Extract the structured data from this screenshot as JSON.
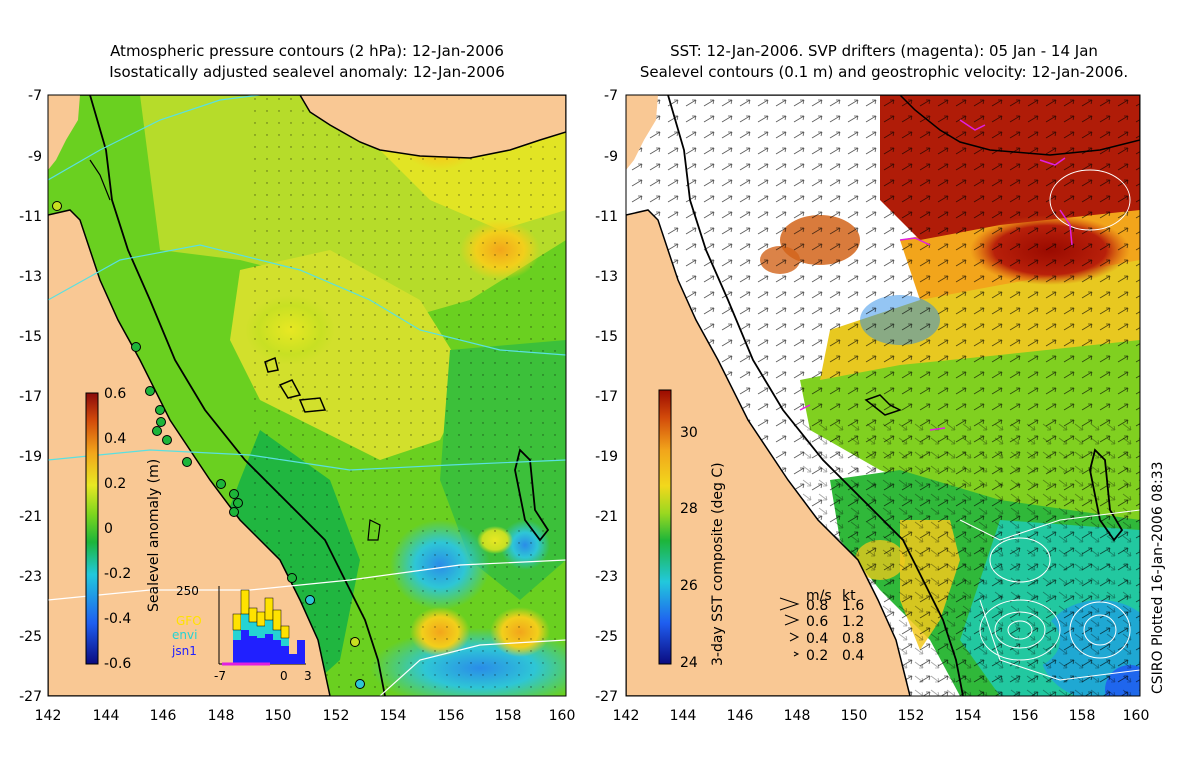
{
  "left_panel": {
    "title_line1": "Atmospheric pressure contours (2 hPa): 12-Jan-2006",
    "title_line2": "Isostatically adjusted sealevel anomaly: 12-Jan-2006",
    "colorbar_label": "Sealevel anomaly (m)",
    "colorbar_ticks": [
      "0.6",
      "0.4",
      "0.2",
      "0",
      "-0.2",
      "-0.4",
      "-0.6"
    ],
    "inset_top": "250",
    "inset_legend": [
      "GFO",
      "envi",
      "jsn1"
    ],
    "inset_legend_colors": [
      "#ffe200",
      "#25d3d3",
      "#2020ff"
    ],
    "inset_xticks": [
      "-7",
      "0",
      "3"
    ]
  },
  "right_panel": {
    "title_line1": "SST: 12-Jan-2006. SVP drifters (magenta): 05 Jan - 14 Jan",
    "title_line2": "Sealevel contours (0.1 m) and geostrophic velocity: 12-Jan-2006.",
    "colorbar_label": "3-day SST composite (deg C)",
    "colorbar_ticks": [
      "30",
      "28",
      "26",
      "24"
    ],
    "velocity_legend_header": [
      "m/s",
      "kt"
    ],
    "velocity_legend": [
      [
        "0.8",
        "1.6"
      ],
      [
        "0.6",
        "1.2"
      ],
      [
        "0.4",
        "0.8"
      ],
      [
        "0.2",
        "0.4"
      ]
    ]
  },
  "axes": {
    "x_ticks": [
      "142",
      "144",
      "146",
      "148",
      "150",
      "152",
      "154",
      "156",
      "158",
      "160"
    ],
    "y_ticks": [
      "-7",
      "-9",
      "-11",
      "-13",
      "-15",
      "-17",
      "-19",
      "-21",
      "-23",
      "-25",
      "-27"
    ]
  },
  "credit": "CSIRO Plotted 16-Jan-2006 08:33",
  "colors": {
    "land": "#f9c894",
    "ssh_colormap": [
      "#0b0b80",
      "#1f5ef0",
      "#22c8dc",
      "#1db53a",
      "#7ad51e",
      "#e8e823",
      "#f2a51b",
      "#d24a0a",
      "#8b0a0a"
    ],
    "sst_colormap": [
      "#0b0b80",
      "#1f5ef0",
      "#22c8dc",
      "#1db53a",
      "#9ad820",
      "#f2d81c",
      "#f2a51b",
      "#d24a0a",
      "#9a0a00"
    ],
    "drifter": "#e020e0",
    "contour_cyan": "#5ae0e0"
  }
}
